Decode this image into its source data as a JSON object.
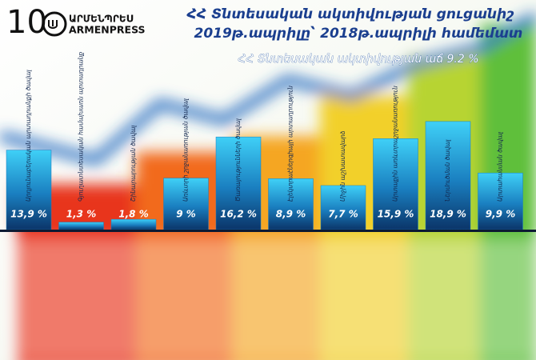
{
  "logo": {
    "number": "10",
    "text_am": "ԱՐՄԵՆՊՐԵՍ",
    "text_en": "ARMENPRESS"
  },
  "chart_data": {
    "type": "bar",
    "title": "ՀՀ Տնտեսական ակտիվության ցուցանիշ",
    "subtitle": "2019թ.ապրիլը՝ 2018թ.ապրիլի համեմատ",
    "annotation": "ՀՀ Տնտեսական ակտիվության աճ 9.2 %",
    "categories": [
      "Արդյունաբերական արտադրանքի ծավալ",
      "Գյուղատնտեսական համախառն արտադրանք",
      "Շինարարության ծավալ",
      "Առևտրի շրջանառության ծավալ",
      "Ծառայությունների ծավալ",
      "Էլեկտրաէներգիայի արտադրություն",
      "Միջին աշխատավարձ",
      "Արտաքին առևտրաշրջանառություն",
      "Ներմուծման ծավալ",
      "Արտահանման ծավալ"
    ],
    "values": [
      13.9,
      1.3,
      1.8,
      9,
      16.2,
      8.9,
      7.7,
      15.9,
      18.9,
      9.9
    ],
    "value_labels": [
      "13,9 %",
      "1,3 %",
      "1,8 %",
      "9 %",
      "16,2 %",
      "8,9 %",
      "7,7 %",
      "15,9 %",
      "18,9 %",
      "9,9 %"
    ],
    "color": "#1a7fc0"
  }
}
